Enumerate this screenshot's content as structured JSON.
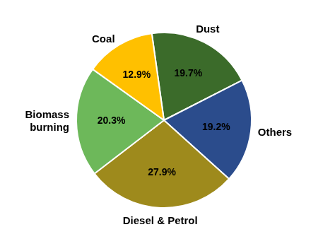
{
  "chart_data": {
    "type": "pie",
    "categories": [
      "Dust",
      "Others",
      "Diesel & Petrol",
      "Biomass burning",
      "Coal"
    ],
    "values": [
      19.7,
      19.2,
      27.9,
      20.3,
      12.9
    ],
    "value_labels": [
      "19.7%",
      "19.2%",
      "27.9%",
      "20.3%",
      "12.9%"
    ],
    "colors": [
      "#3B6B2A",
      "#2B4C8C",
      "#9E8A1C",
      "#6DB85A",
      "#FFC000"
    ],
    "data_labels": true
  }
}
